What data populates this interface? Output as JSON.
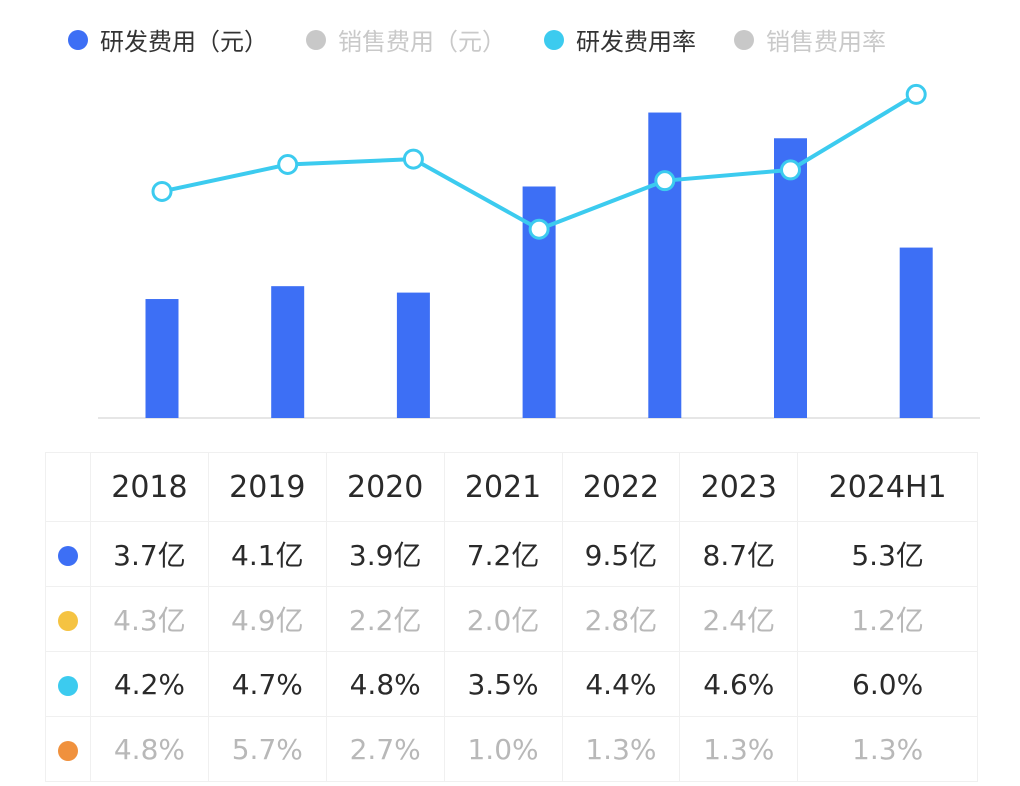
{
  "legend": [
    {
      "label": "研发费用（元）",
      "color": "#3D6FF5",
      "active": true
    },
    {
      "label": "销售费用（元）",
      "color": "#C8C8C8",
      "active": false
    },
    {
      "label": "研发费用率",
      "color": "#3CCBEF",
      "active": true
    },
    {
      "label": "销售费用率",
      "color": "#C8C8C8",
      "active": false
    }
  ],
  "chart_data": {
    "type": "bar+line",
    "categories": [
      "2018",
      "2019",
      "2020",
      "2021",
      "2022",
      "2023",
      "2024H1"
    ],
    "series": [
      {
        "name": "研发费用（元）",
        "type": "bar",
        "unit": "亿",
        "values": [
          3.7,
          4.1,
          3.9,
          7.2,
          9.5,
          8.7,
          5.3
        ],
        "color": "#3D6FF5",
        "visible": true
      },
      {
        "name": "销售费用（元）",
        "type": "bar",
        "unit": "亿",
        "values": [
          4.3,
          4.9,
          2.2,
          2.0,
          2.8,
          2.4,
          1.2
        ],
        "color": "#F5C342",
        "visible": false
      },
      {
        "name": "研发费用率",
        "type": "line",
        "unit": "%",
        "values": [
          4.2,
          4.7,
          4.8,
          3.5,
          4.4,
          4.6,
          6.0
        ],
        "color": "#3CCBEF",
        "visible": true
      },
      {
        "name": "销售费用率",
        "type": "line",
        "unit": "%",
        "values": [
          4.8,
          5.7,
          2.7,
          1.0,
          1.3,
          1.3,
          1.3
        ],
        "color": "#F0913D",
        "visible": false
      }
    ],
    "bar_ylim": [
      0,
      13
    ],
    "line_ylim": [
      0,
      7.75
    ],
    "grid": false,
    "legend_position": "top"
  },
  "table": {
    "headers": [
      "2018",
      "2019",
      "2020",
      "2021",
      "2022",
      "2023",
      "2024H1"
    ],
    "rows": [
      {
        "color": "#3D6FF5",
        "muted": false,
        "cells": [
          "3.7亿",
          "4.1亿",
          "3.9亿",
          "7.2亿",
          "9.5亿",
          "8.7亿",
          "5.3亿"
        ]
      },
      {
        "color": "#F5C342",
        "muted": true,
        "cells": [
          "4.3亿",
          "4.9亿",
          "2.2亿",
          "2.0亿",
          "2.8亿",
          "2.4亿",
          "1.2亿"
        ]
      },
      {
        "color": "#3CCBEF",
        "muted": false,
        "cells": [
          "4.2%",
          "4.7%",
          "4.8%",
          "3.5%",
          "4.4%",
          "4.6%",
          "6.0%"
        ]
      },
      {
        "color": "#F0913D",
        "muted": true,
        "cells": [
          "4.8%",
          "5.7%",
          "2.7%",
          "1.0%",
          "1.3%",
          "1.3%",
          "1.3%"
        ]
      }
    ]
  }
}
